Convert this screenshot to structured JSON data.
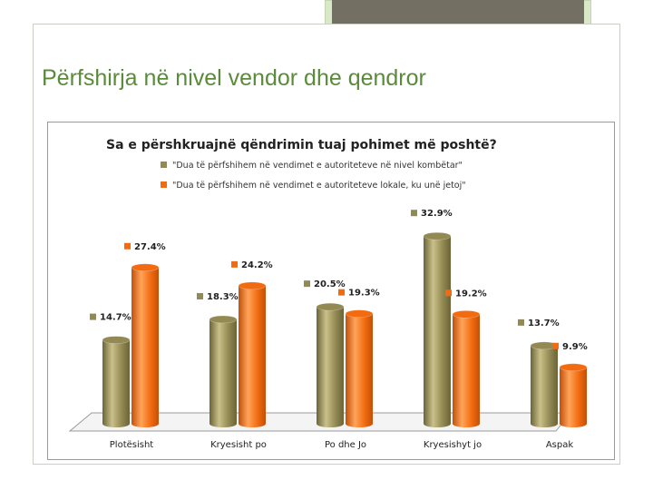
{
  "slide": {
    "title": "Përfshirja në nivel vendor dhe qendror"
  },
  "chart_data": {
    "type": "bar",
    "title": "Sa e përshkruajnë qëndrimin tuaj pohimet më poshtë?",
    "categories": [
      "Plotësisht",
      "Kryesisht po",
      "Po dhe Jo",
      "Kryesishyt jo",
      "Aspak"
    ],
    "series": [
      {
        "name": "\"Dua të përfshihem në vendimet e autoriteteve në nivel kombëtar\"",
        "color": "#938953",
        "values": [
          14.7,
          18.3,
          20.5,
          32.9,
          13.7
        ],
        "labels": [
          "14.7%",
          "18.3%",
          "20.5%",
          "32.9%",
          "13.7%"
        ]
      },
      {
        "name": "\"Dua të përfshihem në vendimet e autoriteteve lokale, ku unë jetoj\"",
        "color": "#f36b10",
        "values": [
          27.4,
          24.2,
          19.3,
          19.2,
          9.9
        ],
        "labels": [
          "27.4%",
          "24.2%",
          "19.3%",
          "19.2%",
          "9.9%"
        ]
      }
    ],
    "ylim": [
      0,
      35
    ],
    "grid": false,
    "legend_position": "top",
    "bar_shape": "cylinder"
  }
}
